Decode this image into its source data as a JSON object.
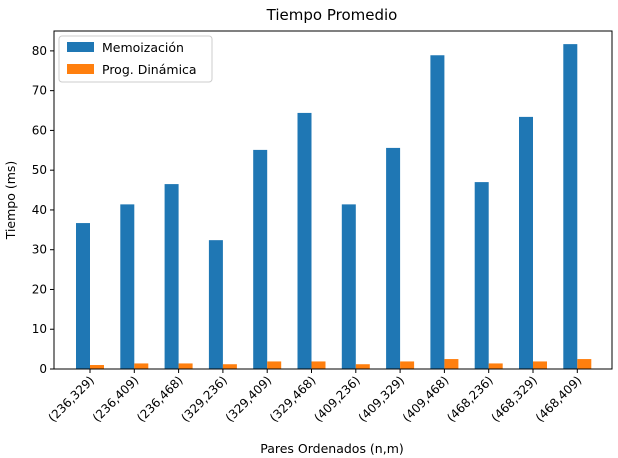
{
  "chart_data": {
    "type": "bar",
    "title": "Tiempo Promedio",
    "xlabel": "Pares Ordenados (n,m)",
    "ylabel": "Tiempo (ms)",
    "ylim": [
      0,
      85
    ],
    "yticks": [
      0,
      10,
      20,
      30,
      40,
      50,
      60,
      70,
      80
    ],
    "grid": false,
    "legend_position": "top-left",
    "categories": [
      "(236,329)",
      "(236,409)",
      "(236,468)",
      "(329,236)",
      "(329,409)",
      "(329,468)",
      "(409,236)",
      "(409,329)",
      "(409,468)",
      "(468,236)",
      "(468,329)",
      "(468,409)"
    ],
    "series": [
      {
        "name": "Memoización",
        "color": "#1f77b4",
        "values": [
          36.7,
          41.4,
          46.5,
          32.4,
          55.1,
          64.4,
          41.4,
          55.6,
          78.9,
          47.0,
          63.4,
          81.7
        ]
      },
      {
        "name": "Prog. Dinámica",
        "color": "#ff7f0e",
        "values": [
          1.0,
          1.4,
          1.4,
          1.2,
          1.9,
          1.9,
          1.2,
          1.9,
          2.5,
          1.4,
          1.9,
          2.5
        ]
      }
    ]
  }
}
